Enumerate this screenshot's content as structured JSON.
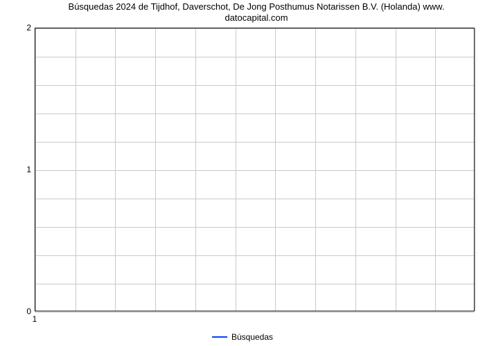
{
  "chart": {
    "type": "line",
    "title_line1": "Búsquedas 2024 de Tijdhof, Daverschot, De Jong Posthumus Notarissen B.V. (Holanda) www.",
    "title_line2": "datocapital.com",
    "title_fontsize": 13,
    "title_color": "#000000",
    "background_color": "#ffffff",
    "plot_background": "#ffffff",
    "border_color": "#000000",
    "grid_color": "#c9c9c9",
    "axis_label_color": "#000000",
    "axis_label_fontsize": 12,
    "xlim": [
      1,
      12
    ],
    "ylim": [
      0,
      2
    ],
    "ytick_values": [
      0,
      1,
      2
    ],
    "ytick_labels": [
      "0",
      "1",
      "2"
    ],
    "xtick_values": [
      1
    ],
    "xtick_labels": [
      "1"
    ],
    "x_gridlines": [
      1,
      2,
      3,
      4,
      5,
      6,
      7,
      8,
      9,
      10,
      11,
      12
    ],
    "y_gridlines": [
      0,
      0.2,
      0.4,
      0.6,
      0.8,
      1.0,
      1.2,
      1.4,
      1.6,
      1.8,
      2.0
    ],
    "series": {
      "name": "Búsquedas",
      "color": "#0040ff",
      "line_width": 2,
      "x": [
        1
      ],
      "y": [
        0
      ]
    },
    "legend": {
      "position": "bottom-center",
      "label": "Búsquedas",
      "swatch_color": "#0040ff",
      "fontsize": 12
    }
  }
}
